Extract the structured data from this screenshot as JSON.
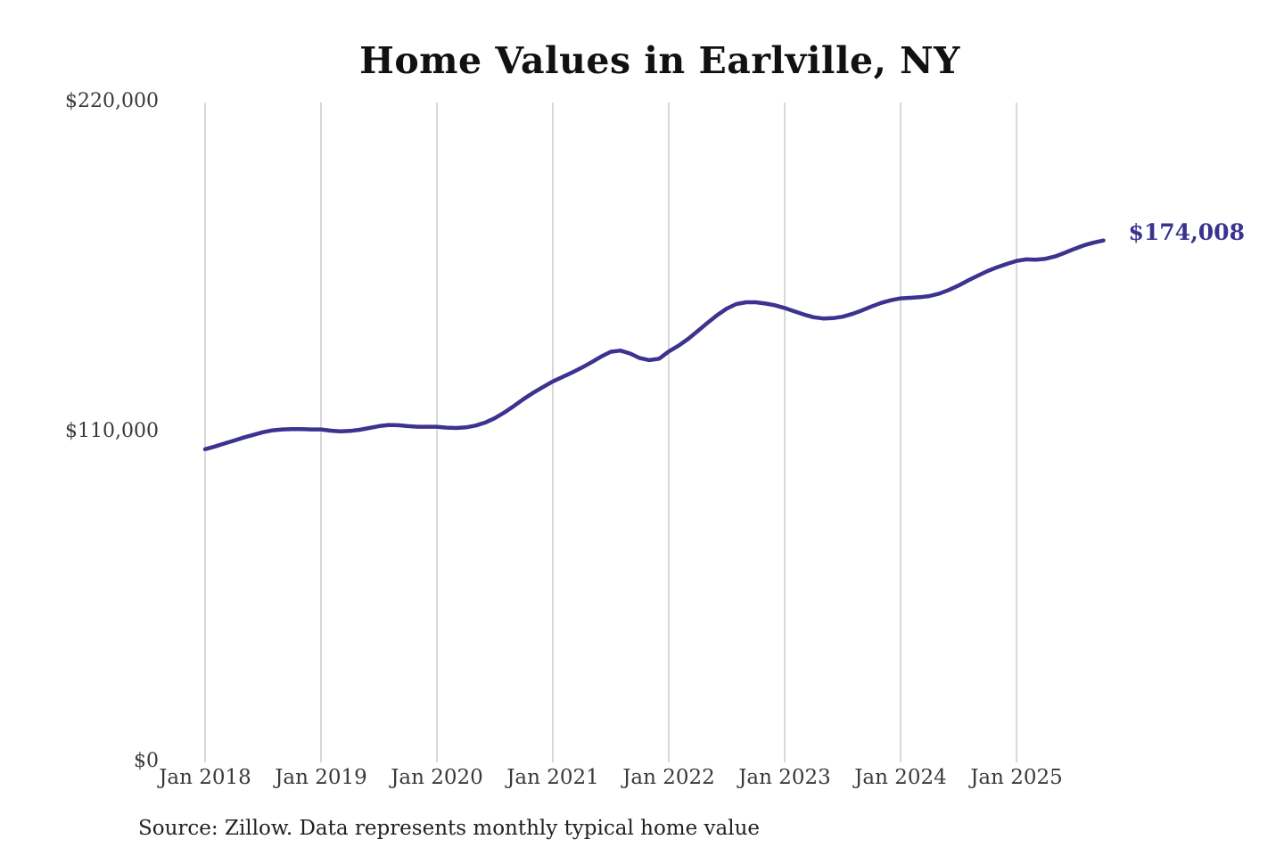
{
  "page": {
    "title": "Home Values in Earlville, NY",
    "source_note": "Source: Zillow. Data represents monthly typical home value",
    "end_value_label": "$174,008"
  },
  "colors": {
    "line": "#3b338f",
    "grid": "#cccccc",
    "axis_text": "#3a3a3a",
    "title_text": "#111111",
    "annotation": "#3b338f"
  },
  "chart_data": {
    "type": "line",
    "title": "Home Values in Earlville, NY",
    "xlabel": "",
    "ylabel": "",
    "ylim": [
      0,
      220000
    ],
    "grid": "vertical-only",
    "legend": "none",
    "y_ticks": [
      {
        "label": "$220,000",
        "value": 220000
      },
      {
        "label": "$110,000",
        "value": 110000
      },
      {
        "label": "$0",
        "value": 0
      }
    ],
    "x_ticks": [
      {
        "label": "Jan 2018",
        "month_index": 0
      },
      {
        "label": "Jan 2019",
        "month_index": 12
      },
      {
        "label": "Jan 2020",
        "month_index": 24
      },
      {
        "label": "Jan 2021",
        "month_index": 36
      },
      {
        "label": "Jan 2022",
        "month_index": 48
      },
      {
        "label": "Jan 2023",
        "month_index": 60
      },
      {
        "label": "Jan 2024",
        "month_index": 72
      },
      {
        "label": "Jan 2025",
        "month_index": 84
      }
    ],
    "annotation": {
      "text": "$174,008",
      "value": 174008
    },
    "series": [
      {
        "name": "Monthly typical home value",
        "start_month": "Jan 2018",
        "end_month": "Oct 2025",
        "last_value": 174008,
        "values": [
          104400,
          105300,
          106300,
          107300,
          108300,
          109200,
          110100,
          110700,
          111000,
          111100,
          111100,
          111000,
          111000,
          110600,
          110400,
          110500,
          110900,
          111500,
          112100,
          112500,
          112400,
          112100,
          111900,
          111900,
          111900,
          111600,
          111500,
          111700,
          112300,
          113300,
          114800,
          116700,
          118900,
          121200,
          123300,
          125200,
          127000,
          128500,
          130000,
          131600,
          133400,
          135300,
          136900,
          137300,
          136300,
          134800,
          134100,
          134600,
          137000,
          138900,
          141200,
          143800,
          146500,
          149100,
          151300,
          152800,
          153400,
          153400,
          153000,
          152400,
          151500,
          150400,
          149300,
          148400,
          148000,
          148100,
          148600,
          149500,
          150700,
          152000,
          153200,
          154100,
          154700,
          154900,
          155100,
          155500,
          156300,
          157500,
          159000,
          160700,
          162300,
          163800,
          165100,
          166200,
          167200,
          167700,
          167600,
          167900,
          168700,
          169900,
          171200,
          172400,
          173300,
          174008
        ]
      }
    ]
  }
}
